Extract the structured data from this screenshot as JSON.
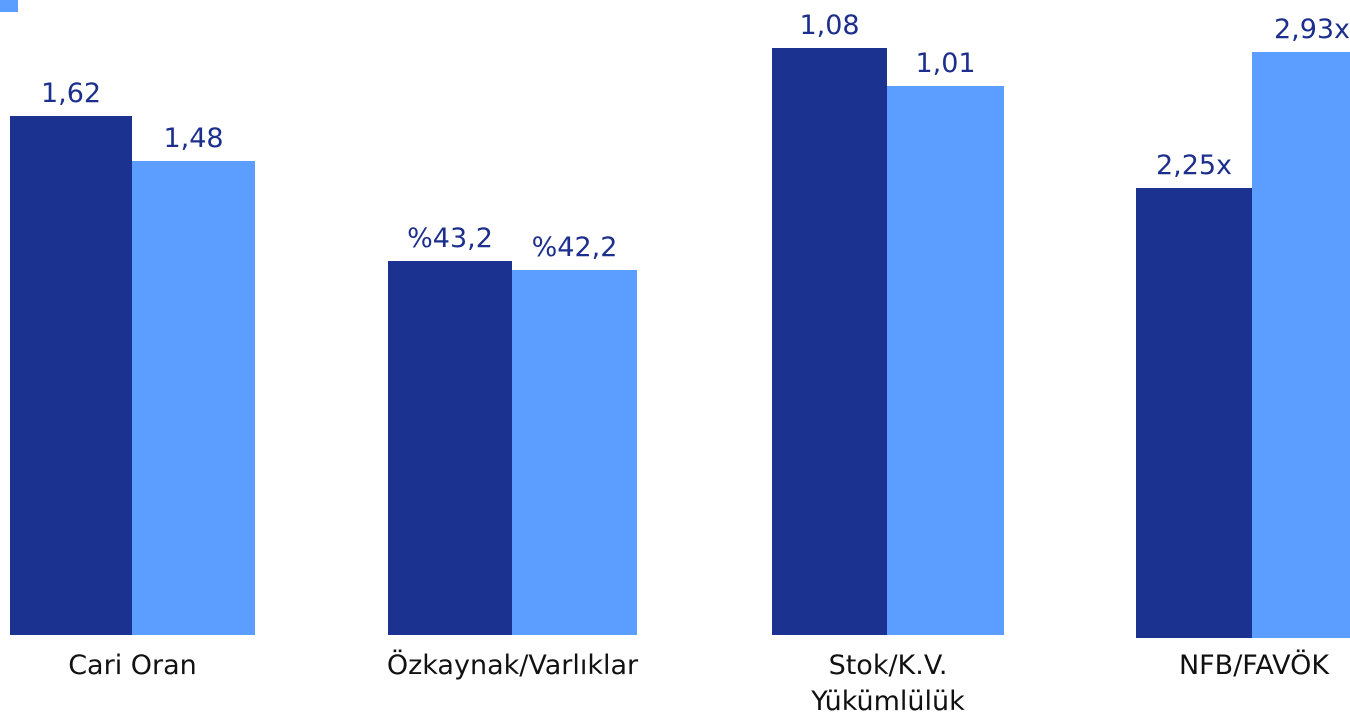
{
  "chart_data": {
    "type": "bar",
    "categories": [
      "Cari Oran",
      "Özkaynak/Varlıklar",
      "Stok/K.V. Yükümlülük",
      "NFB/FAVÖK"
    ],
    "series": [
      {
        "color": "#1b3291",
        "values": [
          1.62,
          43.2,
          1.08,
          2.25
        ],
        "value_labels": [
          "1,62",
          "%43,2",
          "1,08",
          "2,25x"
        ]
      },
      {
        "color": "#5b9eff",
        "values": [
          1.48,
          42.2,
          1.01,
          2.93
        ],
        "value_labels": [
          "1,48",
          "%42,2",
          "1,01",
          "2,93x"
        ]
      }
    ]
  }
}
